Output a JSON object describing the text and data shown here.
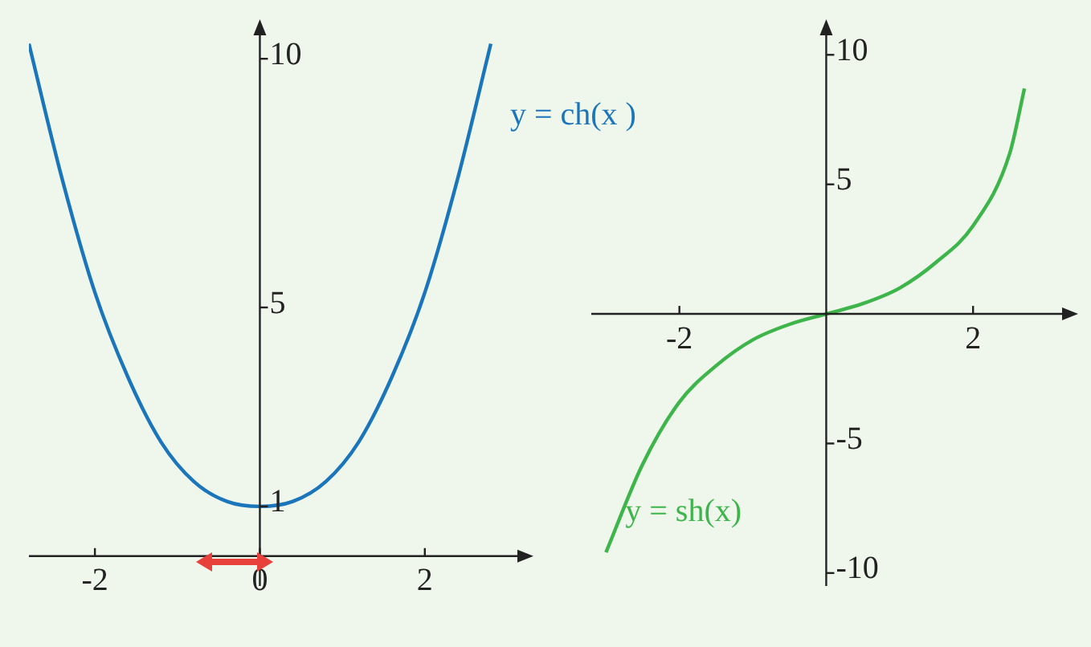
{
  "chart_data": [
    {
      "type": "line",
      "xlim": [
        -2.8,
        3.2
      ],
      "ylim": [
        -0.6,
        10.6
      ],
      "xticks": [
        -2,
        0,
        2
      ],
      "yticks": [
        1,
        5,
        10
      ],
      "grid": false,
      "legend": false,
      "marker": "none",
      "line_style": "solid",
      "series": [
        {
          "name": "y = ch(x )",
          "color": "#1b75bb",
          "x": [
            -2.8,
            -2.4,
            -2,
            -1.6,
            -1.2,
            -0.8,
            -0.4,
            0,
            0.4,
            0.8,
            1.2,
            1.6,
            2,
            2.4,
            2.8
          ],
          "values": [
            10.3,
            7.6,
            5.3,
            3.6,
            2.3,
            1.5,
            1.1,
            1,
            1.1,
            1.5,
            2.3,
            3.6,
            5.3,
            7.6,
            10.3
          ]
        }
      ]
    },
    {
      "type": "line",
      "xlim": [
        -3.2,
        3.3
      ],
      "ylim": [
        -10.5,
        11
      ],
      "xticks": [
        -2,
        2
      ],
      "yticks": [
        -10,
        -5,
        5,
        10
      ],
      "grid": false,
      "legend": false,
      "marker": "none",
      "line_style": "solid",
      "series": [
        {
          "name": "y = sh(x)",
          "color": "#3db54a",
          "x": [
            -3,
            -2.5,
            -2,
            -1.5,
            -1,
            -0.5,
            0,
            0.5,
            1,
            1.5,
            2,
            2.5,
            2.7
          ],
          "values": [
            -9.2,
            -5.8,
            -3.4,
            -2,
            -1,
            -0.4,
            0,
            0.4,
            1,
            2,
            3.4,
            6.2,
            8.7
          ]
        }
      ]
    }
  ]
}
